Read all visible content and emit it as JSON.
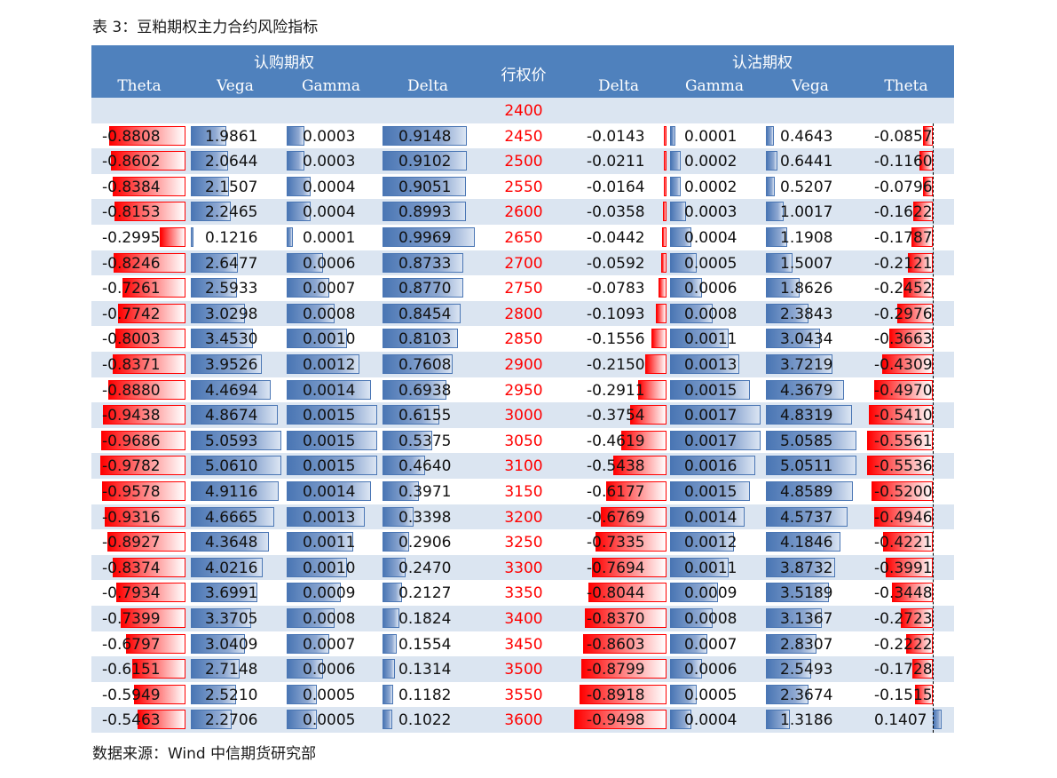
{
  "caption": "表 3：豆粕期权主力合约风险指标",
  "source": "数据来源：Wind  中信期货研究部",
  "header": {
    "call_group": "认购期权",
    "put_group": "认沽期权",
    "strike": "行权价",
    "call_cols": [
      "Theta",
      "Vega",
      "Gamma",
      "Delta"
    ],
    "put_cols": [
      "Delta",
      "Gamma",
      "Vega",
      "Theta"
    ]
  },
  "rows": [
    {
      "strike": "2400",
      "c_theta": "",
      "c_vega": "",
      "c_gamma": "",
      "c_delta": "",
      "p_delta": "",
      "p_gamma": "",
      "p_vega": "",
      "p_theta": ""
    },
    {
      "strike": "2450",
      "c_theta": "-0.8808",
      "c_vega": "1.9861",
      "c_gamma": "0.0003",
      "c_delta": "0.9148",
      "p_delta": "-0.0143",
      "p_gamma": "0.0001",
      "p_vega": "0.4643",
      "p_theta": "-0.0857"
    },
    {
      "strike": "2500",
      "c_theta": "-0.8602",
      "c_vega": "2.0644",
      "c_gamma": "0.0003",
      "c_delta": "0.9102",
      "p_delta": "-0.0211",
      "p_gamma": "0.0002",
      "p_vega": "0.6441",
      "p_theta": "-0.1160"
    },
    {
      "strike": "2550",
      "c_theta": "-0.8384",
      "c_vega": "2.1507",
      "c_gamma": "0.0004",
      "c_delta": "0.9051",
      "p_delta": "-0.0164",
      "p_gamma": "0.0002",
      "p_vega": "0.5207",
      "p_theta": "-0.0796"
    },
    {
      "strike": "2600",
      "c_theta": "-0.8153",
      "c_vega": "2.2465",
      "c_gamma": "0.0004",
      "c_delta": "0.8993",
      "p_delta": "-0.0358",
      "p_gamma": "0.0003",
      "p_vega": "1.0017",
      "p_theta": "-0.1622"
    },
    {
      "strike": "2650",
      "c_theta": "-0.2995",
      "c_vega": "0.1216",
      "c_gamma": "0.0001",
      "c_delta": "0.9969",
      "p_delta": "-0.0442",
      "p_gamma": "0.0004",
      "p_vega": "1.1908",
      "p_theta": "-0.1787"
    },
    {
      "strike": "2700",
      "c_theta": "-0.8246",
      "c_vega": "2.6477",
      "c_gamma": "0.0006",
      "c_delta": "0.8733",
      "p_delta": "-0.0592",
      "p_gamma": "0.0005",
      "p_vega": "1.5007",
      "p_theta": "-0.2121"
    },
    {
      "strike": "2750",
      "c_theta": "-0.7261",
      "c_vega": "2.5933",
      "c_gamma": "0.0007",
      "c_delta": "0.8770",
      "p_delta": "-0.0783",
      "p_gamma": "0.0006",
      "p_vega": "1.8626",
      "p_theta": "-0.2452"
    },
    {
      "strike": "2800",
      "c_theta": "-0.7742",
      "c_vega": "3.0298",
      "c_gamma": "0.0008",
      "c_delta": "0.8454",
      "p_delta": "-0.1093",
      "p_gamma": "0.0008",
      "p_vega": "2.3843",
      "p_theta": "-0.2976"
    },
    {
      "strike": "2850",
      "c_theta": "-0.8003",
      "c_vega": "3.4530",
      "c_gamma": "0.0010",
      "c_delta": "0.8103",
      "p_delta": "-0.1556",
      "p_gamma": "0.0011",
      "p_vega": "3.0434",
      "p_theta": "-0.3663"
    },
    {
      "strike": "2900",
      "c_theta": "-0.8371",
      "c_vega": "3.9526",
      "c_gamma": "0.0012",
      "c_delta": "0.7608",
      "p_delta": "-0.2150",
      "p_gamma": "0.0013",
      "p_vega": "3.7219",
      "p_theta": "-0.4309"
    },
    {
      "strike": "2950",
      "c_theta": "-0.8880",
      "c_vega": "4.4694",
      "c_gamma": "0.0014",
      "c_delta": "0.6938",
      "p_delta": "-0.2911",
      "p_gamma": "0.0015",
      "p_vega": "4.3679",
      "p_theta": "-0.4970"
    },
    {
      "strike": "3000",
      "c_theta": "-0.9438",
      "c_vega": "4.8674",
      "c_gamma": "0.0015",
      "c_delta": "0.6155",
      "p_delta": "-0.3754",
      "p_gamma": "0.0017",
      "p_vega": "4.8319",
      "p_theta": "-0.5410"
    },
    {
      "strike": "3050",
      "c_theta": "-0.9686",
      "c_vega": "5.0593",
      "c_gamma": "0.0015",
      "c_delta": "0.5375",
      "p_delta": "-0.4619",
      "p_gamma": "0.0017",
      "p_vega": "5.0585",
      "p_theta": "-0.5561"
    },
    {
      "strike": "3100",
      "c_theta": "-0.9782",
      "c_vega": "5.0610",
      "c_gamma": "0.0015",
      "c_delta": "0.4640",
      "p_delta": "-0.5438",
      "p_gamma": "0.0016",
      "p_vega": "5.0511",
      "p_theta": "-0.5536"
    },
    {
      "strike": "3150",
      "c_theta": "-0.9578",
      "c_vega": "4.9116",
      "c_gamma": "0.0014",
      "c_delta": "0.3971",
      "p_delta": "-0.6177",
      "p_gamma": "0.0015",
      "p_vega": "4.8589",
      "p_theta": "-0.5200"
    },
    {
      "strike": "3200",
      "c_theta": "-0.9316",
      "c_vega": "4.6665",
      "c_gamma": "0.0013",
      "c_delta": "0.3398",
      "p_delta": "-0.6769",
      "p_gamma": "0.0014",
      "p_vega": "4.5737",
      "p_theta": "-0.4946"
    },
    {
      "strike": "3250",
      "c_theta": "-0.8927",
      "c_vega": "4.3648",
      "c_gamma": "0.0011",
      "c_delta": "0.2906",
      "p_delta": "-0.7335",
      "p_gamma": "0.0012",
      "p_vega": "4.1846",
      "p_theta": "-0.4221"
    },
    {
      "strike": "3300",
      "c_theta": "-0.8374",
      "c_vega": "4.0216",
      "c_gamma": "0.0010",
      "c_delta": "0.2470",
      "p_delta": "-0.7694",
      "p_gamma": "0.0011",
      "p_vega": "3.8732",
      "p_theta": "-0.3991"
    },
    {
      "strike": "3350",
      "c_theta": "-0.7934",
      "c_vega": "3.6991",
      "c_gamma": "0.0009",
      "c_delta": "0.2127",
      "p_delta": "-0.8044",
      "p_gamma": "0.0009",
      "p_vega": "3.5189",
      "p_theta": "-0.3448"
    },
    {
      "strike": "3400",
      "c_theta": "-0.7399",
      "c_vega": "3.3705",
      "c_gamma": "0.0008",
      "c_delta": "0.1824",
      "p_delta": "-0.8370",
      "p_gamma": "0.0008",
      "p_vega": "3.1367",
      "p_theta": "-0.2723"
    },
    {
      "strike": "3450",
      "c_theta": "-0.6797",
      "c_vega": "3.0409",
      "c_gamma": "0.0007",
      "c_delta": "0.1554",
      "p_delta": "-0.8603",
      "p_gamma": "0.0007",
      "p_vega": "2.8307",
      "p_theta": "-0.2222"
    },
    {
      "strike": "3500",
      "c_theta": "-0.6151",
      "c_vega": "2.7148",
      "c_gamma": "0.0006",
      "c_delta": "0.1314",
      "p_delta": "-0.8799",
      "p_gamma": "0.0006",
      "p_vega": "2.5493",
      "p_theta": "-0.1728"
    },
    {
      "strike": "3550",
      "c_theta": "-0.5949",
      "c_vega": "2.5210",
      "c_gamma": "0.0005",
      "c_delta": "0.1182",
      "p_delta": "-0.8918",
      "p_gamma": "0.0005",
      "p_vega": "2.3674",
      "p_theta": "-0.1515"
    },
    {
      "strike": "3600",
      "c_theta": "-0.5463",
      "c_vega": "2.2706",
      "c_gamma": "0.0005",
      "c_delta": "0.1022",
      "p_delta": "-0.9498",
      "p_gamma": "0.0004",
      "p_vega": "1.3186",
      "p_theta": "0.1407"
    }
  ],
  "colors": {
    "header_bg": "#4f81bd",
    "alt_row_bg": "#dbe5f1",
    "strike_text": "#ff0000",
    "negative_bar": "#ff0000",
    "positive_bar": "#4a76b4"
  }
}
